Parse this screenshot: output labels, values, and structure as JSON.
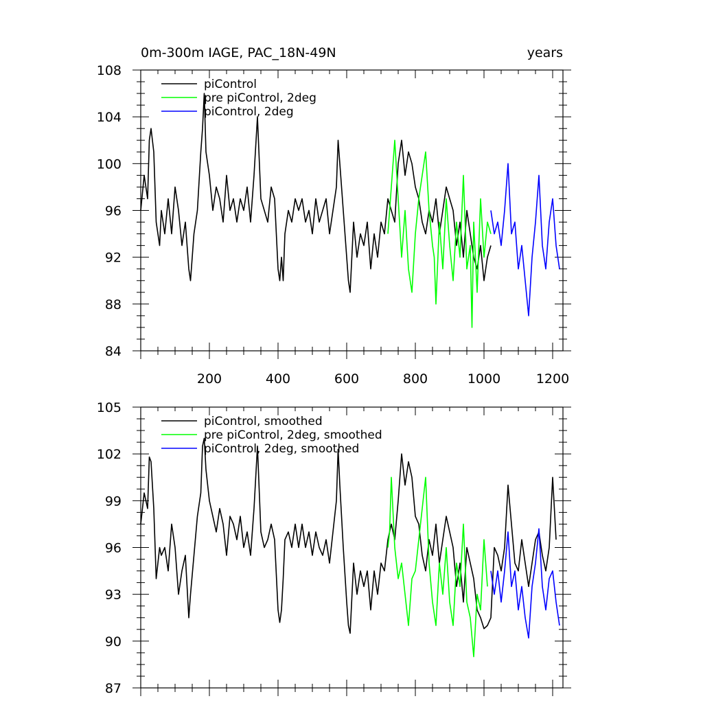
{
  "chart_data": [
    {
      "type": "line",
      "title": "0m-300m IAGE, PAC_18N-49N",
      "title_right": "years",
      "xlabel": "",
      "ylabel": "",
      "xlim": [
        0,
        1230
      ],
      "ylim": [
        84,
        108
      ],
      "x_ticks": [
        200,
        400,
        600,
        800,
        1000,
        1200
      ],
      "y_ticks": [
        84,
        88,
        92,
        96,
        100,
        104,
        108
      ],
      "legend_position": "top-left",
      "grid": false,
      "series": [
        {
          "name": "piControl",
          "color": "#000000",
          "x": [
            0,
            10,
            20,
            25,
            30,
            38,
            45,
            55,
            60,
            70,
            80,
            90,
            100,
            110,
            120,
            130,
            140,
            145,
            155,
            165,
            175,
            180,
            185,
            190,
            200,
            210,
            220,
            230,
            240,
            250,
            260,
            270,
            280,
            290,
            300,
            310,
            320,
            330,
            340,
            350,
            360,
            370,
            380,
            390,
            400,
            405,
            410,
            415,
            420,
            430,
            440,
            450,
            460,
            470,
            480,
            490,
            500,
            510,
            520,
            530,
            540,
            550,
            560,
            570,
            575,
            580,
            590,
            600,
            605,
            610,
            620,
            630,
            640,
            650,
            660,
            670,
            680,
            690,
            700,
            710,
            720,
            730,
            740,
            750,
            760,
            770,
            780,
            790,
            800,
            810,
            820,
            830,
            840,
            850,
            860,
            870,
            880,
            890,
            900,
            910,
            920,
            930,
            940,
            950,
            960,
            970,
            980,
            990,
            1000,
            1010,
            1020
          ],
          "values": [
            96,
            99,
            97,
            102,
            103,
            101,
            95,
            93,
            96,
            94,
            97,
            94,
            98,
            96,
            93,
            95,
            91,
            90,
            94,
            96,
            101,
            103,
            106,
            101,
            99,
            96,
            98,
            97,
            95,
            99,
            96,
            97,
            95,
            97,
            96,
            98,
            95,
            99,
            104,
            97,
            96,
            95,
            98,
            97,
            91,
            90,
            92,
            90,
            94,
            96,
            95,
            97,
            96,
            97,
            95,
            96,
            94,
            97,
            95,
            96,
            97,
            94,
            96,
            98,
            102,
            100,
            96,
            92,
            90,
            89,
            95,
            92,
            94,
            93,
            95,
            91,
            94,
            92,
            95,
            94,
            97,
            96,
            95,
            100,
            102,
            99,
            101,
            100,
            98,
            97,
            95,
            94,
            96,
            95,
            97,
            94,
            96,
            98,
            97,
            96,
            93,
            95,
            92,
            96,
            94,
            92,
            91,
            93,
            90,
            92,
            93
          ]
        },
        {
          "name": "pre piControl, 2deg",
          "color": "#00ff00",
          "x": [
            720,
            730,
            740,
            750,
            760,
            770,
            780,
            790,
            800,
            810,
            820,
            830,
            840,
            850,
            855,
            860,
            870,
            880,
            890,
            900,
            910,
            920,
            930,
            940,
            950,
            960,
            965,
            970,
            980,
            990,
            1000,
            1010,
            1020
          ],
          "values": [
            94,
            98,
            102,
            97,
            92,
            96,
            91,
            89,
            94,
            97,
            99,
            101,
            96,
            93,
            92,
            88,
            95,
            91,
            97,
            93,
            90,
            95,
            92,
            99,
            91,
            93,
            86,
            95,
            89,
            97,
            92,
            95,
            94
          ]
        },
        {
          "name": "piControl, 2deg",
          "color": "#0000ff",
          "x": [
            1020,
            1030,
            1040,
            1050,
            1060,
            1070,
            1080,
            1090,
            1100,
            1110,
            1120,
            1130,
            1140,
            1150,
            1160,
            1170,
            1180,
            1190,
            1200,
            1210,
            1220
          ],
          "values": [
            96,
            94,
            95,
            93,
            96,
            100,
            94,
            95,
            91,
            93,
            90,
            87,
            92,
            95,
            99,
            93,
            91,
            95,
            97,
            93,
            91
          ]
        }
      ]
    },
    {
      "type": "line",
      "title": "",
      "xlabel": "",
      "ylabel": "",
      "xlim": [
        0,
        1230
      ],
      "ylim": [
        87,
        105
      ],
      "x_ticks": [
        200,
        400,
        600,
        800,
        1000,
        1200
      ],
      "y_ticks": [
        87,
        90,
        93,
        96,
        99,
        102,
        105
      ],
      "legend_position": "top-left",
      "grid": false,
      "series": [
        {
          "name": "piControl, smoothed",
          "color": "#000000",
          "x": [
            0,
            10,
            20,
            25,
            30,
            38,
            45,
            55,
            60,
            70,
            80,
            90,
            100,
            110,
            120,
            130,
            140,
            145,
            155,
            165,
            175,
            180,
            185,
            190,
            200,
            210,
            220,
            230,
            240,
            250,
            260,
            270,
            280,
            290,
            300,
            310,
            320,
            330,
            340,
            350,
            360,
            370,
            380,
            390,
            400,
            405,
            410,
            415,
            420,
            430,
            440,
            450,
            460,
            470,
            480,
            490,
            500,
            510,
            520,
            530,
            540,
            550,
            560,
            570,
            575,
            580,
            590,
            600,
            605,
            610,
            620,
            630,
            640,
            650,
            660,
            670,
            680,
            690,
            700,
            710,
            720,
            730,
            740,
            750,
            760,
            770,
            780,
            790,
            800,
            810,
            820,
            830,
            840,
            850,
            860,
            870,
            880,
            890,
            900,
            910,
            920,
            930,
            940,
            950,
            960,
            970,
            980,
            990,
            1000,
            1010,
            1020,
            1030,
            1040,
            1050,
            1060,
            1070,
            1080,
            1090,
            1100,
            1110,
            1120,
            1130,
            1140,
            1150,
            1160,
            1170,
            1180,
            1190,
            1200,
            1210
          ],
          "values": [
            97.5,
            99.5,
            98.5,
            101.8,
            101.5,
            98.5,
            94,
            96,
            95.5,
            96,
            94.5,
            97.5,
            96,
            93,
            94.5,
            95.5,
            91.5,
            93,
            95.5,
            98,
            99.5,
            102.5,
            103,
            101,
            99,
            98,
            97,
            98.5,
            97.5,
            95.5,
            98,
            97.5,
            96.5,
            98,
            96,
            97,
            95.5,
            98.5,
            102.5,
            97,
            96,
            96.5,
            97.5,
            96.5,
            92,
            91.2,
            92,
            94,
            96.5,
            97,
            96,
            97.5,
            96,
            97.5,
            96,
            97,
            95.5,
            97,
            96,
            95.5,
            96.5,
            95,
            97,
            99,
            102.3,
            100,
            96,
            92.5,
            91,
            90.5,
            95,
            93,
            94.5,
            93.5,
            94.5,
            92,
            94.5,
            93,
            95,
            94.5,
            96.5,
            97.5,
            96.5,
            99,
            102,
            100,
            101.5,
            100.5,
            98,
            97.5,
            95.5,
            94.5,
            96.5,
            95.5,
            97.5,
            95,
            96.5,
            98,
            97,
            96,
            93.5,
            95,
            92.5,
            96,
            95,
            94,
            92,
            91.5,
            90.8,
            91,
            91.5,
            96,
            95.5,
            94.5,
            96,
            100,
            97.5,
            95,
            94.5,
            96.5,
            95,
            93.5,
            95,
            96.5,
            97,
            95.5,
            94.5,
            96,
            100.5,
            96.5
          ]
        },
        {
          "name": "pre piControl, 2deg, smoothed",
          "color": "#00ff00",
          "x": [
            720,
            725,
            730,
            740,
            750,
            760,
            770,
            780,
            790,
            800,
            810,
            820,
            830,
            840,
            850,
            860,
            870,
            880,
            890,
            900,
            910,
            920,
            930,
            940,
            950,
            960,
            970,
            980,
            990,
            1000,
            1010
          ],
          "values": [
            96,
            97,
            100.5,
            96,
            94,
            95,
            93,
            91,
            94,
            94.5,
            96.5,
            98.5,
            100.5,
            95,
            92.5,
            91,
            95,
            93,
            96,
            92.5,
            91,
            95,
            93.5,
            97.5,
            92.5,
            91.5,
            89,
            93,
            92,
            96.5,
            93.5
          ]
        },
        {
          "name": "piControl, 2deg, smoothed",
          "color": "#0000ff",
          "x": [
            1020,
            1030,
            1040,
            1050,
            1060,
            1070,
            1080,
            1090,
            1100,
            1110,
            1120,
            1130,
            1140,
            1150,
            1160,
            1170,
            1180,
            1190,
            1200,
            1210,
            1220
          ],
          "values": [
            94.5,
            93,
            94.5,
            92.5,
            94.5,
            97,
            93.5,
            94.5,
            92,
            93.5,
            91.5,
            90.2,
            93.5,
            95,
            97.2,
            93.5,
            92,
            94,
            94.5,
            92.5,
            91
          ]
        }
      ]
    }
  ]
}
